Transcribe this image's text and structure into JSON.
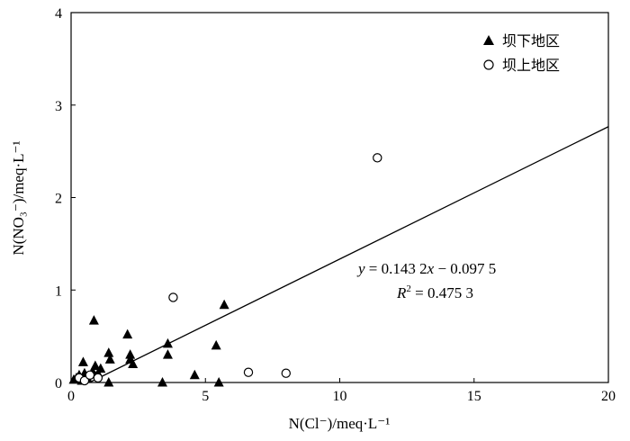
{
  "chart_data": {
    "type": "scatter",
    "xlabel": "N(Cl⁻)/meq·L⁻¹",
    "ylabel": "N(NO₃⁻)/meq·L⁻¹",
    "xlim": [
      0,
      20
    ],
    "ylim": [
      0,
      4
    ],
    "xticks": [
      "0",
      "5",
      "10",
      "15",
      "20"
    ],
    "yticks": [
      "0",
      "1",
      "2",
      "3",
      "4"
    ],
    "legend_position": "top-right",
    "grid": false,
    "series": [
      {
        "name": "坝下地区",
        "marker": "filled-triangle",
        "color": "#000000",
        "points": [
          [
            0.1,
            0.03
          ],
          [
            0.2,
            0.05
          ],
          [
            0.3,
            0.08
          ],
          [
            0.4,
            0.02
          ],
          [
            0.5,
            0.1
          ],
          [
            0.45,
            0.22
          ],
          [
            0.6,
            0.05
          ],
          [
            0.8,
            0.12
          ],
          [
            0.85,
            0.67
          ],
          [
            0.9,
            0.18
          ],
          [
            1.0,
            0.1
          ],
          [
            1.1,
            0.15
          ],
          [
            1.4,
            0.32
          ],
          [
            1.45,
            0.25
          ],
          [
            1.4,
            0.0
          ],
          [
            2.1,
            0.52
          ],
          [
            2.2,
            0.3
          ],
          [
            2.2,
            0.25
          ],
          [
            2.3,
            0.2
          ],
          [
            3.4,
            0.0
          ],
          [
            3.6,
            0.42
          ],
          [
            3.6,
            0.3
          ],
          [
            4.6,
            0.08
          ],
          [
            5.4,
            0.4
          ],
          [
            5.5,
            0.0
          ],
          [
            5.7,
            0.84
          ]
        ]
      },
      {
        "name": "坝上地区",
        "marker": "open-circle",
        "color": "#000000",
        "points": [
          [
            0.3,
            0.05
          ],
          [
            0.5,
            0.02
          ],
          [
            0.7,
            0.08
          ],
          [
            1.0,
            0.05
          ],
          [
            3.8,
            0.92
          ],
          [
            6.6,
            0.11
          ],
          [
            8.0,
            0.1
          ],
          [
            11.4,
            2.43
          ]
        ]
      }
    ],
    "regression": {
      "slope": 0.1432,
      "intercept": -0.0975,
      "equation_parts": {
        "y": "y",
        "eq": " = 0.143 2",
        "x": "x",
        "rest": " − 0.097 5"
      },
      "r2_parts": {
        "r": "R",
        "sup": "2",
        "rest": " = 0.475 3"
      }
    }
  }
}
